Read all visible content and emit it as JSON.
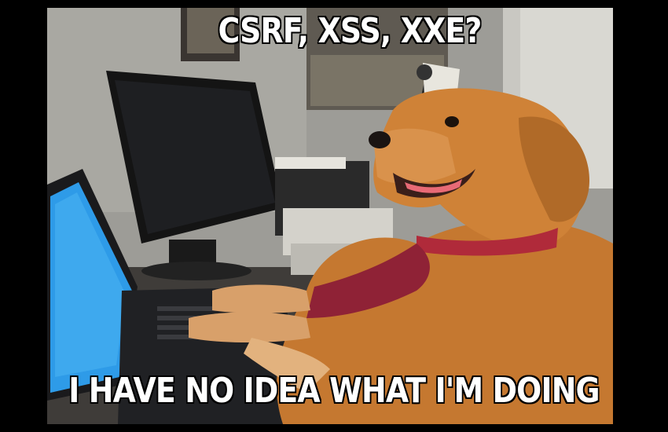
{
  "meme": {
    "top_text": "CSRF, XSS, XXE?",
    "bottom_text": "I HAVE NO IDEA WHAT I'M DOING"
  },
  "colors": {
    "background": "#000000",
    "caption_fill": "#ffffff",
    "caption_stroke": "#000000",
    "dog_fur": "#c97a33",
    "tie": "#b02a3a",
    "laptop_screen": "#2e9be8"
  },
  "scene": {
    "subject": "dog-icon",
    "objects": [
      "monitor-icon",
      "laptop-icon",
      "printer-icon",
      "desk-lamp-icon",
      "window-blinds-icon",
      "poster-icon"
    ]
  }
}
